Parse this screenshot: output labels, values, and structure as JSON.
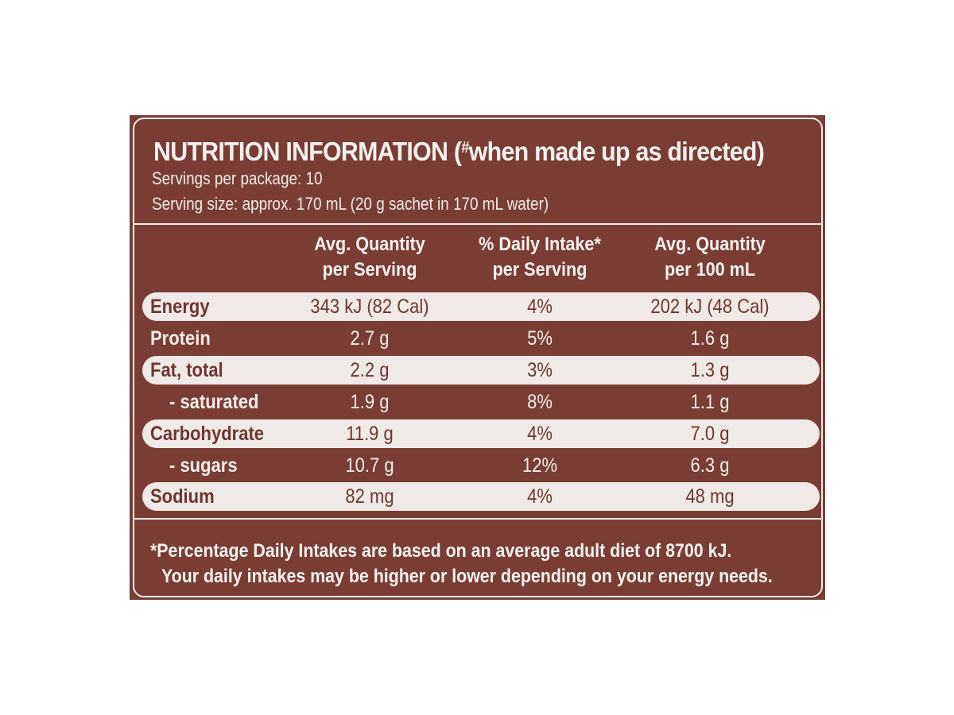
{
  "label": {
    "title": "NUTRITION INFORMATION (",
    "title_mark": "#",
    "title_rest": "when made up as directed)",
    "servings_per_package": "Servings per package: 10",
    "serving_size": "Serving size: approx. 170 mL (20 g sachet in 170 mL water)"
  },
  "columns": [
    {
      "line1": "Avg. Quantity",
      "line2": "per Serving"
    },
    {
      "line1": "% Daily Intake*",
      "line2": "per Serving"
    },
    {
      "line1": "Avg. Quantity",
      "line2": "per 100 mL"
    }
  ],
  "rows": [
    {
      "name": "Energy",
      "per_serving": "343 kJ (82 Cal)",
      "daily_intake": "4%",
      "per_100ml": "202 kJ (48 Cal)"
    },
    {
      "name": "Protein",
      "per_serving": "2.7 g",
      "daily_intake": "5%",
      "per_100ml": "1.6 g"
    },
    {
      "name": "Fat, total",
      "per_serving": "2.2 g",
      "daily_intake": "3%",
      "per_100ml": "1.3 g"
    },
    {
      "name": "- saturated",
      "per_serving": "1.9 g",
      "daily_intake": "8%",
      "per_100ml": "1.1 g"
    },
    {
      "name": "Carbohydrate",
      "per_serving": "11.9 g",
      "daily_intake": "4%",
      "per_100ml": "7.0 g"
    },
    {
      "name": "- sugars",
      "per_serving": "10.7 g",
      "daily_intake": "12%",
      "per_100ml": "6.3 g"
    },
    {
      "name": "Sodium",
      "per_serving": "82 mg",
      "daily_intake": "4%",
      "per_100ml": "48 mg"
    }
  ],
  "footnote": {
    "line1": "*Percentage Daily Intakes are based on an average adult diet of 8700 kJ.",
    "line2": "Your daily intakes may be higher or lower depending on your energy needs."
  },
  "colors": {
    "panel_brown": "#7a3d33",
    "text_cream": "#f6f1ee",
    "highlight_row": "#efe9e7"
  }
}
